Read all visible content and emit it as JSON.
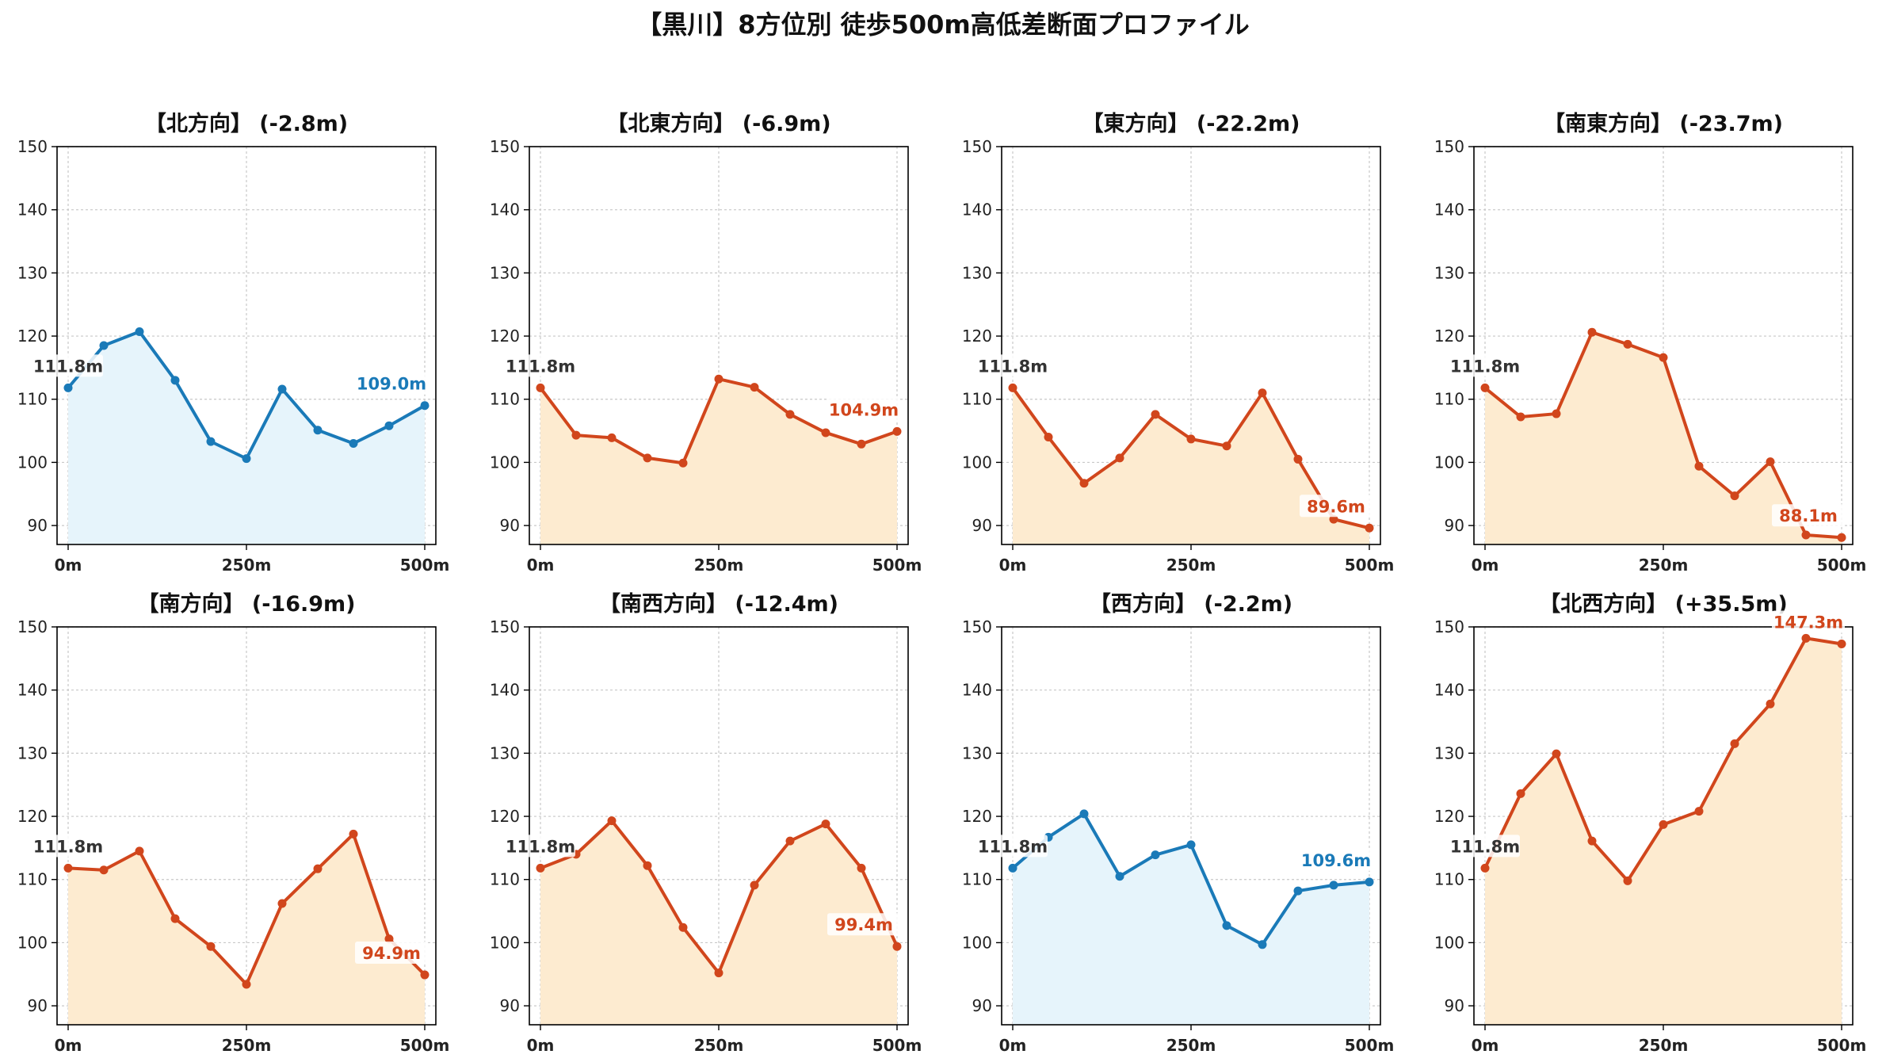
{
  "figure_title": "【黒川】8方位別 徒歩500m高低差断面プロファイル",
  "colors": {
    "descend_line": "#d1461c",
    "descend_fill": "#fdebd0",
    "level_line": "#1a7ab8",
    "level_fill": "#e6f4fb",
    "start_label": "#333333",
    "grid": "#c8c8c8"
  },
  "chart_data": [
    {
      "type": "area",
      "title": "【北方向】 (-2.8m)",
      "style": "level",
      "x": [
        0,
        50,
        100,
        150,
        200,
        250,
        300,
        350,
        400,
        450,
        500
      ],
      "values": [
        111.8,
        118.5,
        120.7,
        113.0,
        103.3,
        100.6,
        111.6,
        105.1,
        103.0,
        105.8,
        109.0
      ],
      "start_label": "111.8m",
      "end_label": "109.0m",
      "ylim": [
        87,
        150
      ],
      "yticks": [
        90,
        100,
        110,
        120,
        130,
        140,
        150
      ],
      "xticks": [
        "0m",
        "250m",
        "500m"
      ],
      "grid": true
    },
    {
      "type": "area",
      "title": "【北東方向】 (-6.9m)",
      "style": "descend",
      "x": [
        0,
        50,
        100,
        150,
        200,
        250,
        300,
        350,
        400,
        450,
        500
      ],
      "values": [
        111.8,
        104.3,
        103.9,
        100.7,
        99.9,
        113.2,
        111.9,
        107.6,
        104.7,
        102.9,
        104.9
      ],
      "start_label": "111.8m",
      "end_label": "104.9m",
      "ylim": [
        87,
        150
      ],
      "yticks": [
        90,
        100,
        110,
        120,
        130,
        140,
        150
      ],
      "xticks": [
        "0m",
        "250m",
        "500m"
      ],
      "grid": true
    },
    {
      "type": "area",
      "title": "【東方向】 (-22.2m)",
      "style": "descend",
      "x": [
        0,
        50,
        100,
        150,
        200,
        250,
        300,
        350,
        400,
        450,
        500
      ],
      "values": [
        111.8,
        104.0,
        96.7,
        100.7,
        107.6,
        103.7,
        102.6,
        111.0,
        100.5,
        91.0,
        89.6
      ],
      "start_label": "111.8m",
      "end_label": "89.6m",
      "ylim": [
        87,
        150
      ],
      "yticks": [
        90,
        100,
        110,
        120,
        130,
        140,
        150
      ],
      "xticks": [
        "0m",
        "250m",
        "500m"
      ],
      "grid": true
    },
    {
      "type": "area",
      "title": "【南東方向】 (-23.7m)",
      "style": "descend",
      "x": [
        0,
        50,
        100,
        150,
        200,
        250,
        300,
        350,
        400,
        450,
        500
      ],
      "values": [
        111.8,
        107.2,
        107.7,
        120.6,
        118.7,
        116.6,
        99.4,
        94.7,
        100.1,
        88.5,
        88.1
      ],
      "start_label": "111.8m",
      "end_label": "88.1m",
      "ylim": [
        87,
        150
      ],
      "yticks": [
        90,
        100,
        110,
        120,
        130,
        140,
        150
      ],
      "xticks": [
        "0m",
        "250m",
        "500m"
      ],
      "grid": true
    },
    {
      "type": "area",
      "title": "【南方向】 (-16.9m)",
      "style": "descend",
      "x": [
        0,
        50,
        100,
        150,
        200,
        250,
        300,
        350,
        400,
        450,
        500
      ],
      "values": [
        111.8,
        111.5,
        114.5,
        103.8,
        99.4,
        93.4,
        106.2,
        111.7,
        117.2,
        100.6,
        94.9
      ],
      "start_label": "111.8m",
      "end_label": "94.9m",
      "ylim": [
        87,
        150
      ],
      "yticks": [
        90,
        100,
        110,
        120,
        130,
        140,
        150
      ],
      "xticks": [
        "0m",
        "250m",
        "500m"
      ],
      "grid": true
    },
    {
      "type": "area",
      "title": "【南西方向】 (-12.4m)",
      "style": "descend",
      "x": [
        0,
        50,
        100,
        150,
        200,
        250,
        300,
        350,
        400,
        450,
        500
      ],
      "values": [
        111.8,
        114.0,
        119.3,
        112.2,
        102.4,
        95.2,
        109.1,
        116.1,
        118.8,
        111.8,
        99.4
      ],
      "start_label": "111.8m",
      "end_label": "99.4m",
      "ylim": [
        87,
        150
      ],
      "yticks": [
        90,
        100,
        110,
        120,
        130,
        140,
        150
      ],
      "xticks": [
        "0m",
        "250m",
        "500m"
      ],
      "grid": true
    },
    {
      "type": "area",
      "title": "【西方向】 (-2.2m)",
      "style": "level",
      "x": [
        0,
        50,
        100,
        150,
        200,
        250,
        300,
        350,
        400,
        450,
        500
      ],
      "values": [
        111.8,
        116.7,
        120.4,
        110.5,
        113.9,
        115.5,
        102.7,
        99.7,
        108.2,
        109.1,
        109.6
      ],
      "start_label": "111.8m",
      "end_label": "109.6m",
      "ylim": [
        87,
        150
      ],
      "yticks": [
        90,
        100,
        110,
        120,
        130,
        140,
        150
      ],
      "xticks": [
        "0m",
        "250m",
        "500m"
      ],
      "grid": true
    },
    {
      "type": "area",
      "title": "【北西方向】 (+35.5m)",
      "style": "descend",
      "x": [
        0,
        50,
        100,
        150,
        200,
        250,
        300,
        350,
        400,
        450,
        500
      ],
      "values": [
        111.8,
        123.6,
        129.9,
        116.1,
        109.8,
        118.7,
        120.8,
        131.5,
        137.8,
        148.2,
        147.3
      ],
      "start_label": "111.8m",
      "end_label": "147.3m",
      "ylim": [
        87,
        150
      ],
      "yticks": [
        90,
        100,
        110,
        120,
        130,
        140,
        150
      ],
      "xticks": [
        "0m",
        "250m",
        "500m"
      ],
      "grid": true
    }
  ]
}
